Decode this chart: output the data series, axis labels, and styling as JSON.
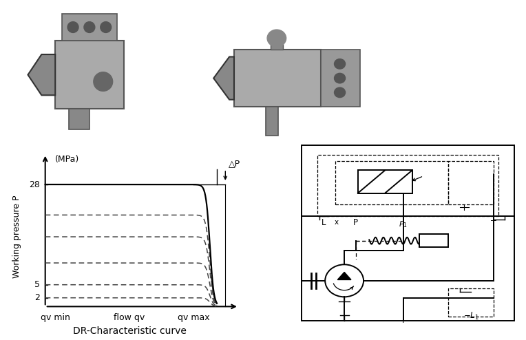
{
  "background_color": "#ffffff",
  "chart_title": "DR-Characteristic curve",
  "ylabel": "Working pressure P",
  "ylabel2": "(MPa)",
  "yticks": [
    2,
    5,
    28
  ],
  "xlabels": [
    "qv min",
    "flow qv",
    "qv max"
  ],
  "curves": [
    {
      "level": 28,
      "solid": true
    },
    {
      "level": 21,
      "solid": false
    },
    {
      "level": 16,
      "solid": false
    },
    {
      "level": 10,
      "solid": false
    },
    {
      "level": 5,
      "solid": false
    },
    {
      "level": 2,
      "solid": false
    }
  ],
  "delta_p_label": "△P",
  "font_size": 9,
  "title_font_size": 10
}
